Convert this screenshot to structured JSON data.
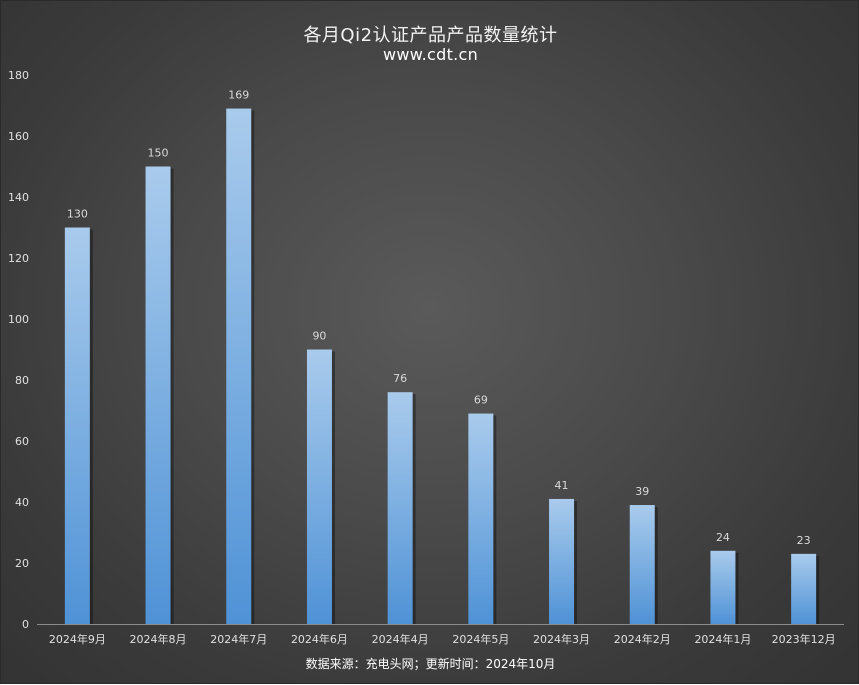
{
  "chart_data": {
    "type": "bar",
    "title": "各月Qi2认证产品产品数量统计",
    "subtitle": "www.cdt.cn",
    "categories": [
      "2024年9月",
      "2024年8月",
      "2024年7月",
      "2024年6月",
      "2024年4月",
      "2024年5月",
      "2024年3月",
      "2024年2月",
      "2024年1月",
      "2023年12月"
    ],
    "values": [
      130,
      150,
      169,
      90,
      76,
      69,
      41,
      39,
      24,
      23
    ],
    "ylim": [
      0,
      180
    ],
    "yticks": [
      0,
      20,
      40,
      60,
      80,
      100,
      120,
      140,
      160,
      180
    ],
    "xlabel": "",
    "ylabel": "",
    "grid": false,
    "footer": "数据来源：充电头网；更新时间：2024年10月",
    "colors": {
      "bar_top": "#a9cbec",
      "bar_bottom": "#4f92d6",
      "axis": "#8c8c8c"
    }
  }
}
